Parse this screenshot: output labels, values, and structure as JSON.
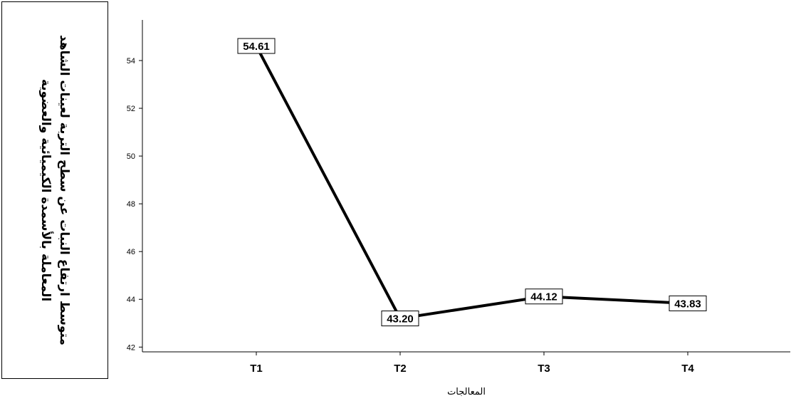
{
  "chart_data": {
    "type": "line",
    "categories": [
      "T1",
      "T2",
      "T3",
      "T4"
    ],
    "series": [
      {
        "values": [
          54.61,
          43.2,
          44.12,
          43.83
        ]
      }
    ],
    "data_labels": [
      "54.61",
      "43.20",
      "44.12",
      "43.83"
    ],
    "xlabel": "المعالجات",
    "ylabel": "متوسط ارتفاع النبات عن سطح التربة لعينات الشاهد المعاملة بالأسمدة الكيميائية والعضوية",
    "yticks": [
      42,
      44,
      46,
      48,
      50,
      52,
      54
    ],
    "ylim": [
      41.8,
      55.7
    ],
    "grid": false,
    "line_color": "#000000"
  }
}
